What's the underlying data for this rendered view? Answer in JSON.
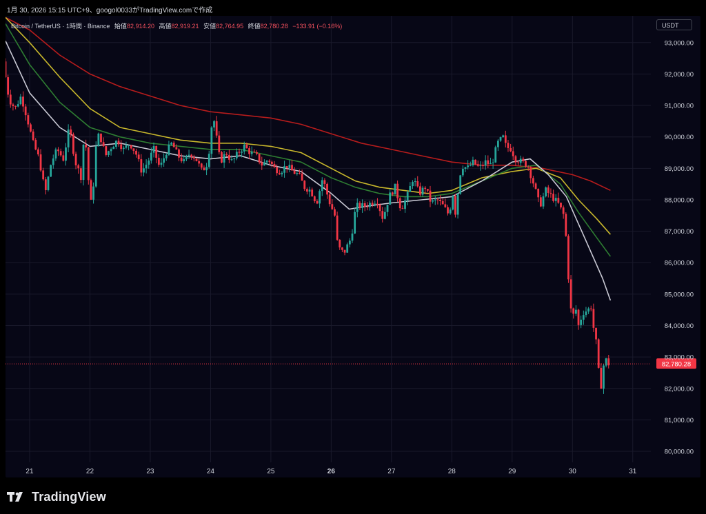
{
  "header": {
    "snapshot_text": "1月 30, 2026 15:15 UTC+9、googol0033がTradingView.comで作成"
  },
  "legend": {
    "symbol": "Bitcoin / TetherUS · 1時間 · Binance",
    "open_label": "始値",
    "open_value": "82,914.20",
    "high_label": "高値",
    "high_value": "82,919.21",
    "low_label": "安値",
    "low_value": "82,764.95",
    "close_label": "終値",
    "close_value": "82,780.28",
    "change": "−133.91 (−0.16%)"
  },
  "currency_badge": "USDT",
  "footer": {
    "brand": "TradingView"
  },
  "colors": {
    "background": "#070716",
    "up": "#26a69a",
    "down": "#f23645",
    "grid": "#1a1a2b",
    "ema_white": "#c9c9d4",
    "ema_green": "#2e7d32",
    "ema_yellow": "#c9b82c",
    "ema_red": "#b71c1c",
    "last_price": "#f23645"
  },
  "chart_data": {
    "type": "candlestick",
    "y_tick_labels": [
      "93,000.00",
      "92,000.00",
      "91,000.00",
      "90,000.00",
      "89,000.00",
      "88,000.00",
      "87,000.00",
      "86,000.00",
      "85,000.00",
      "84,000.00",
      "83,000.00",
      "82,000.00",
      "81,000.00",
      "80,000.00"
    ],
    "y_ticks": [
      93000,
      92000,
      91000,
      90000,
      89000,
      88000,
      87000,
      86000,
      85000,
      84000,
      83000,
      82000,
      81000,
      80000
    ],
    "ylim": [
      79650,
      93850
    ],
    "x_tick_labels": [
      "21",
      "22",
      "23",
      "24",
      "25",
      "26",
      "27",
      "28",
      "29",
      "30",
      "31"
    ],
    "x_ticks_day": [
      21,
      22,
      23,
      24,
      25,
      26,
      27,
      28,
      29,
      30,
      31
    ],
    "x_bold_day": 26,
    "xlim_day": [
      20.6,
      31.3
    ],
    "last_price": 82780.28,
    "last_price_label": "82,780.28",
    "price_path": [
      [
        20.6,
        92400
      ],
      [
        20.7,
        91200
      ],
      [
        20.8,
        90900
      ],
      [
        20.9,
        91300
      ],
      [
        21.0,
        90600
      ],
      [
        21.1,
        89800
      ],
      [
        21.2,
        89300
      ],
      [
        21.3,
        88200
      ],
      [
        21.4,
        89200
      ],
      [
        21.5,
        89600
      ],
      [
        21.6,
        89300
      ],
      [
        21.7,
        90300
      ],
      [
        21.8,
        89200
      ],
      [
        21.9,
        88700
      ],
      [
        21.95,
        90300
      ],
      [
        22.05,
        87800
      ],
      [
        22.1,
        88500
      ],
      [
        22.15,
        89900
      ],
      [
        22.2,
        90100
      ],
      [
        22.3,
        89400
      ],
      [
        22.4,
        89700
      ],
      [
        22.5,
        89900
      ],
      [
        22.6,
        89600
      ],
      [
        22.7,
        89800
      ],
      [
        22.8,
        89500
      ],
      [
        22.9,
        88900
      ],
      [
        23.0,
        89200
      ],
      [
        23.1,
        89600
      ],
      [
        23.2,
        89000
      ],
      [
        23.3,
        89500
      ],
      [
        23.4,
        89800
      ],
      [
        23.5,
        89400
      ],
      [
        23.6,
        89200
      ],
      [
        23.7,
        89500
      ],
      [
        23.8,
        89300
      ],
      [
        23.9,
        88900
      ],
      [
        24.0,
        89200
      ],
      [
        24.05,
        90300
      ],
      [
        24.1,
        90500
      ],
      [
        24.2,
        89200
      ],
      [
        24.3,
        89500
      ],
      [
        24.4,
        89200
      ],
      [
        24.5,
        89500
      ],
      [
        24.6,
        89700
      ],
      [
        24.7,
        89500
      ],
      [
        24.8,
        89400
      ],
      [
        24.9,
        89100
      ],
      [
        25.0,
        89300
      ],
      [
        25.1,
        89000
      ],
      [
        25.2,
        88900
      ],
      [
        25.3,
        89100
      ],
      [
        25.4,
        88900
      ],
      [
        25.5,
        88800
      ],
      [
        25.6,
        88400
      ],
      [
        25.7,
        88300
      ],
      [
        25.8,
        87900
      ],
      [
        25.9,
        88700
      ],
      [
        26.0,
        88000
      ],
      [
        26.1,
        87500
      ],
      [
        26.15,
        86500
      ],
      [
        26.25,
        86300
      ],
      [
        26.35,
        86700
      ],
      [
        26.4,
        87100
      ],
      [
        26.45,
        87800
      ],
      [
        26.6,
        87800
      ],
      [
        26.7,
        87900
      ],
      [
        26.8,
        88000
      ],
      [
        26.9,
        87400
      ],
      [
        27.0,
        88100
      ],
      [
        27.1,
        88400
      ],
      [
        27.2,
        87700
      ],
      [
        27.3,
        88100
      ],
      [
        27.4,
        88700
      ],
      [
        27.5,
        88200
      ],
      [
        27.6,
        88400
      ],
      [
        27.7,
        87900
      ],
      [
        27.8,
        88000
      ],
      [
        27.9,
        87800
      ],
      [
        28.0,
        87500
      ],
      [
        28.05,
        88300
      ],
      [
        28.1,
        87600
      ],
      [
        28.2,
        89100
      ],
      [
        28.3,
        89000
      ],
      [
        28.4,
        89200
      ],
      [
        28.5,
        89000
      ],
      [
        28.6,
        89200
      ],
      [
        28.7,
        89100
      ],
      [
        28.8,
        89800
      ],
      [
        28.9,
        90000
      ],
      [
        28.95,
        89600
      ],
      [
        29.0,
        89700
      ],
      [
        29.1,
        89300
      ],
      [
        29.2,
        89200
      ],
      [
        29.3,
        89100
      ],
      [
        29.4,
        88500
      ],
      [
        29.5,
        87800
      ],
      [
        29.6,
        88300
      ],
      [
        29.7,
        88100
      ],
      [
        29.8,
        87900
      ],
      [
        29.9,
        87500
      ],
      [
        29.95,
        86500
      ],
      [
        30.0,
        84600
      ],
      [
        30.05,
        84300
      ],
      [
        30.1,
        84500
      ],
      [
        30.15,
        83900
      ],
      [
        30.2,
        84400
      ],
      [
        30.3,
        84500
      ],
      [
        30.35,
        84600
      ],
      [
        30.4,
        83800
      ],
      [
        30.45,
        83300
      ],
      [
        30.5,
        81800
      ],
      [
        30.55,
        82700
      ],
      [
        30.6,
        82900
      ],
      [
        30.63,
        82780
      ]
    ],
    "ema_white": [
      [
        20.6,
        93050
      ],
      [
        21.0,
        91400
      ],
      [
        21.5,
        90300
      ],
      [
        22.0,
        89700
      ],
      [
        22.5,
        89800
      ],
      [
        23.0,
        89600
      ],
      [
        23.5,
        89400
      ],
      [
        24.0,
        89300
      ],
      [
        24.5,
        89400
      ],
      [
        25.0,
        89100
      ],
      [
        25.5,
        88900
      ],
      [
        26.0,
        88200
      ],
      [
        26.3,
        87700
      ],
      [
        26.6,
        87800
      ],
      [
        27.0,
        87900
      ],
      [
        27.5,
        88000
      ],
      [
        28.0,
        88100
      ],
      [
        28.5,
        88600
      ],
      [
        29.0,
        89200
      ],
      [
        29.3,
        89300
      ],
      [
        29.6,
        88800
      ],
      [
        29.9,
        88100
      ],
      [
        30.2,
        86800
      ],
      [
        30.5,
        85500
      ],
      [
        30.63,
        84800
      ]
    ],
    "ema_green": [
      [
        20.6,
        93600
      ],
      [
        21.0,
        92300
      ],
      [
        21.5,
        91100
      ],
      [
        22.0,
        90300
      ],
      [
        22.5,
        90000
      ],
      [
        23.0,
        89800
      ],
      [
        23.5,
        89700
      ],
      [
        24.0,
        89600
      ],
      [
        24.5,
        89600
      ],
      [
        25.0,
        89400
      ],
      [
        25.5,
        89200
      ],
      [
        26.0,
        88700
      ],
      [
        26.4,
        88400
      ],
      [
        26.8,
        88200
      ],
      [
        27.2,
        88100
      ],
      [
        27.6,
        88100
      ],
      [
        28.0,
        88200
      ],
      [
        28.5,
        88600
      ],
      [
        29.0,
        89000
      ],
      [
        29.4,
        89100
      ],
      [
        29.8,
        88500
      ],
      [
        30.1,
        87600
      ],
      [
        30.4,
        86800
      ],
      [
        30.63,
        86200
      ]
    ],
    "ema_yellow": [
      [
        20.6,
        93800
      ],
      [
        21.0,
        93000
      ],
      [
        21.5,
        91900
      ],
      [
        22.0,
        90900
      ],
      [
        22.5,
        90300
      ],
      [
        23.0,
        90100
      ],
      [
        23.5,
        89900
      ],
      [
        24.0,
        89800
      ],
      [
        24.5,
        89800
      ],
      [
        25.0,
        89700
      ],
      [
        25.5,
        89500
      ],
      [
        26.0,
        89000
      ],
      [
        26.4,
        88600
      ],
      [
        26.8,
        88400
      ],
      [
        27.2,
        88300
      ],
      [
        27.6,
        88200
      ],
      [
        28.0,
        88300
      ],
      [
        28.5,
        88700
      ],
      [
        29.0,
        88900
      ],
      [
        29.4,
        89000
      ],
      [
        29.8,
        88700
      ],
      [
        30.1,
        88000
      ],
      [
        30.4,
        87400
      ],
      [
        30.63,
        86900
      ]
    ],
    "ema_red": [
      [
        20.6,
        93800
      ],
      [
        21.0,
        93400
      ],
      [
        21.5,
        92600
      ],
      [
        22.0,
        92000
      ],
      [
        22.5,
        91600
      ],
      [
        23.0,
        91300
      ],
      [
        23.5,
        91000
      ],
      [
        24.0,
        90800
      ],
      [
        24.5,
        90700
      ],
      [
        25.0,
        90600
      ],
      [
        25.5,
        90400
      ],
      [
        26.0,
        90100
      ],
      [
        26.5,
        89800
      ],
      [
        27.0,
        89600
      ],
      [
        27.5,
        89400
      ],
      [
        28.0,
        89200
      ],
      [
        28.5,
        89100
      ],
      [
        29.0,
        89100
      ],
      [
        29.5,
        89000
      ],
      [
        30.0,
        88800
      ],
      [
        30.3,
        88600
      ],
      [
        30.63,
        88300
      ]
    ]
  }
}
